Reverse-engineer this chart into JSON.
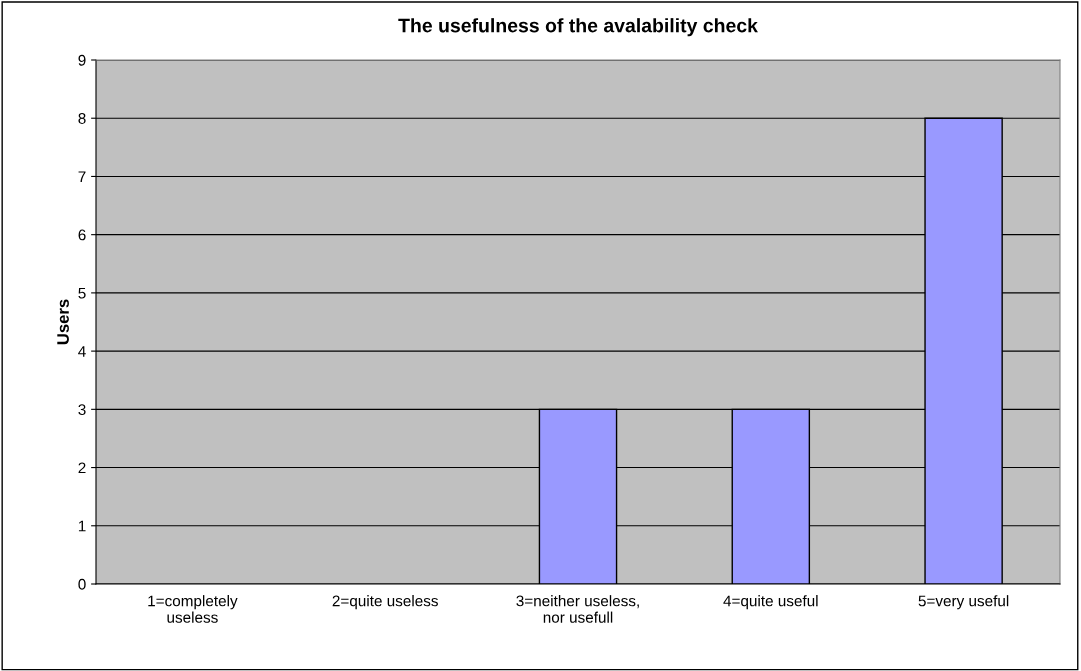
{
  "chart_data": {
    "type": "bar",
    "title": "The usefulness of the avalability check",
    "ylabel": "Users",
    "categories": [
      "1=completely\nuseless",
      "2=quite useless",
      "3=neither useless,\nnor usefull",
      "4=quite useful",
      "5=very useful"
    ],
    "values": [
      0,
      0,
      3,
      3,
      8
    ],
    "color": "#9999ff",
    "ylim": [
      0,
      9
    ],
    "yticks": [
      0,
      1,
      2,
      3,
      4,
      5,
      6,
      7,
      8,
      9
    ],
    "grid": "y",
    "legend": false
  }
}
